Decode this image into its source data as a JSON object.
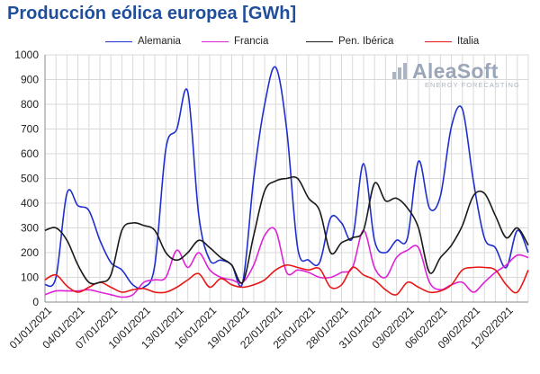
{
  "title": "Producción eólica europea [GWh]",
  "logo": {
    "name": "AleaSoft",
    "tagline": "ENERGY FORECASTING"
  },
  "chart_data": {
    "type": "line",
    "title": "Producción eólica europea [GWh]",
    "ylim": [
      0,
      1000
    ],
    "yticks": [
      0,
      100,
      200,
      300,
      400,
      500,
      600,
      700,
      800,
      900,
      1000
    ],
    "xticks": [
      "01/01/2021",
      "04/01/2021",
      "07/01/2021",
      "10/01/2021",
      "13/01/2021",
      "16/01/2021",
      "19/01/2021",
      "22/01/2021",
      "25/01/2021",
      "28/01/2021",
      "31/01/2021",
      "03/02/2021",
      "06/02/2021",
      "09/02/2021",
      "12/02/2021"
    ],
    "grid": true,
    "legend_position": "top",
    "x": [
      "01/01/2021",
      "02/01/2021",
      "03/01/2021",
      "04/01/2021",
      "05/01/2021",
      "06/01/2021",
      "07/01/2021",
      "08/01/2021",
      "09/01/2021",
      "10/01/2021",
      "11/01/2021",
      "12/01/2021",
      "13/01/2021",
      "14/01/2021",
      "15/01/2021",
      "16/01/2021",
      "17/01/2021",
      "18/01/2021",
      "19/01/2021",
      "20/01/2021",
      "21/01/2021",
      "22/01/2021",
      "23/01/2021",
      "24/01/2021",
      "25/01/2021",
      "26/01/2021",
      "27/01/2021",
      "28/01/2021",
      "29/01/2021",
      "30/01/2021",
      "31/01/2021",
      "01/02/2021",
      "02/02/2021",
      "03/02/2021",
      "04/02/2021",
      "05/02/2021",
      "06/02/2021",
      "07/02/2021",
      "08/02/2021",
      "09/02/2021",
      "10/02/2021",
      "11/02/2021",
      "12/02/2021",
      "13/02/2021",
      "14/02/2021"
    ],
    "series": [
      {
        "name": "Alemania",
        "color": "#1f2fcf",
        "values": [
          70,
          100,
          440,
          390,
          370,
          250,
          160,
          130,
          70,
          60,
          150,
          620,
          700,
          850,
          350,
          170,
          170,
          150,
          80,
          500,
          800,
          950,
          700,
          220,
          170,
          160,
          340,
          320,
          260,
          560,
          250,
          200,
          250,
          260,
          570,
          380,
          430,
          710,
          780,
          490,
          260,
          220,
          140,
          290,
          200
        ]
      },
      {
        "name": "Francia",
        "color": "#e022d6",
        "values": [
          30,
          45,
          45,
          45,
          50,
          40,
          30,
          20,
          30,
          80,
          90,
          100,
          210,
          140,
          200,
          130,
          100,
          90,
          80,
          150,
          270,
          290,
          120,
          130,
          120,
          100,
          100,
          120,
          140,
          290,
          140,
          100,
          180,
          210,
          220,
          80,
          50,
          70,
          80,
          40,
          80,
          120,
          150,
          190,
          180
        ]
      },
      {
        "name": "Pen. Ibérica",
        "color": "#1a1a1a",
        "values": [
          290,
          300,
          250,
          150,
          80,
          80,
          110,
          290,
          320,
          310,
          290,
          200,
          170,
          200,
          250,
          220,
          180,
          150,
          80,
          270,
          450,
          490,
          500,
          500,
          420,
          370,
          200,
          240,
          260,
          290,
          480,
          410,
          420,
          380,
          300,
          120,
          180,
          230,
          310,
          430,
          440,
          350,
          260,
          300,
          230
        ]
      },
      {
        "name": "Italia",
        "color": "#e81717",
        "values": [
          90,
          110,
          65,
          40,
          60,
          80,
          60,
          40,
          50,
          55,
          40,
          40,
          60,
          90,
          115,
          60,
          95,
          70,
          60,
          70,
          90,
          130,
          150,
          140,
          130,
          135,
          60,
          70,
          140,
          110,
          90,
          50,
          30,
          80,
          60,
          40,
          45,
          70,
          130,
          140,
          140,
          130,
          70,
          40,
          130
        ]
      }
    ]
  }
}
